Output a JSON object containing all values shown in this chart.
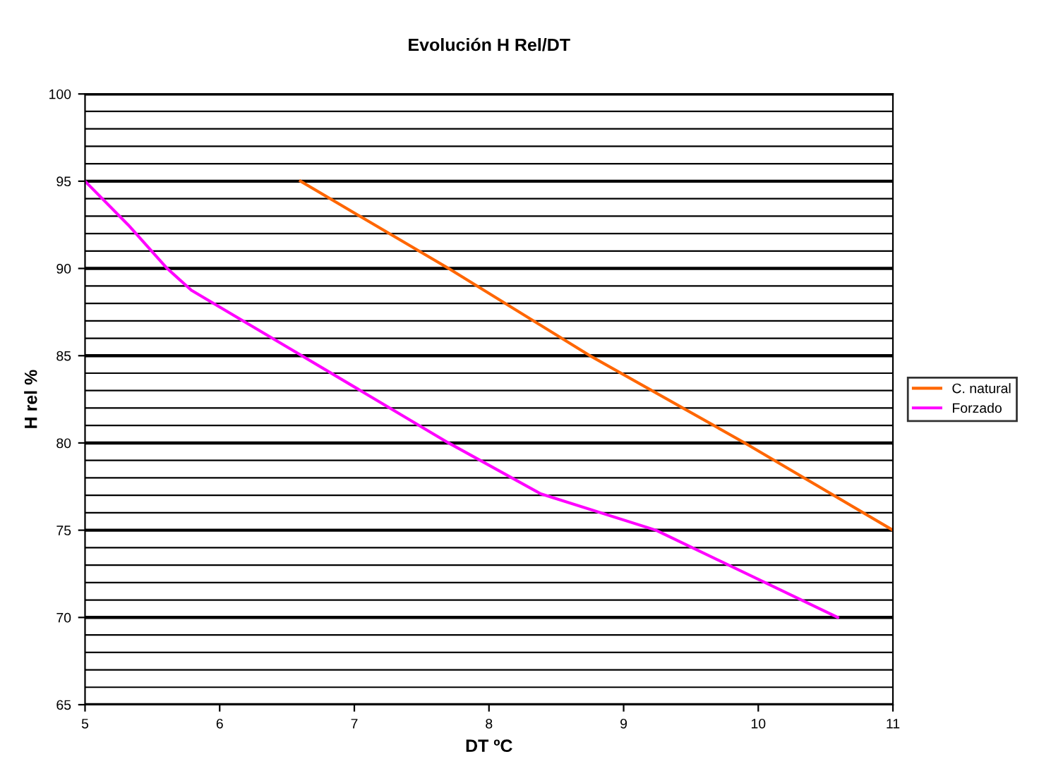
{
  "chart_data": {
    "type": "line",
    "title": "Evolución H Rel/DT",
    "xlabel": "DT ºC",
    "ylabel": "H rel %",
    "series": [
      {
        "name": "C. natural",
        "color": "#ff6600",
        "x": [
          6.6,
          7.7,
          8.75,
          9.9,
          11
        ],
        "values": [
          95,
          90,
          85,
          80,
          75
        ]
      },
      {
        "name": "Forzado",
        "color": "#ff00ff",
        "x": [
          5,
          5.32,
          5.61,
          5.79,
          6.61,
          7.7,
          8.38,
          9.24,
          10.59
        ],
        "values": [
          95,
          92.5,
          90,
          88.75,
          85,
          80,
          77.1,
          75,
          70
        ]
      }
    ],
    "xlim": [
      5,
      11
    ],
    "xticks": [
      5,
      6,
      7,
      8,
      9,
      10,
      11
    ],
    "ylim": [
      65,
      100
    ],
    "yticks": [
      65,
      70,
      75,
      80,
      85,
      90,
      95,
      100
    ],
    "grid": "y",
    "legend": "right",
    "marker": "none",
    "line_style": "solid"
  }
}
